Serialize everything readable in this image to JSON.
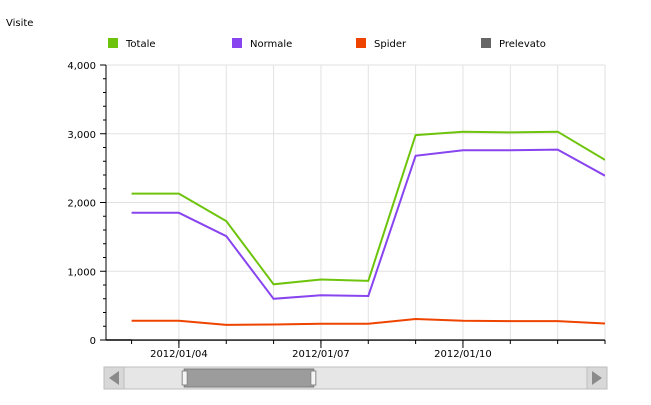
{
  "chart_data": {
    "type": "line",
    "title": "Visite",
    "xlabel": "",
    "ylabel": "",
    "x_tick_labels": [
      "2012/01/04",
      "2012/01/07",
      "2012/01/10"
    ],
    "x": [
      "2012/01/03",
      "2012/01/04",
      "2012/01/05",
      "2012/01/06",
      "2012/01/07",
      "2012/01/08",
      "2012/01/09",
      "2012/01/10",
      "2012/01/11",
      "2012/01/12",
      "2012/01/13"
    ],
    "xlim": [
      "2012/01/03",
      "2012/01/13"
    ],
    "ylim": [
      0,
      4000
    ],
    "y_ticks": [
      0,
      1000,
      2000,
      3000,
      4000
    ],
    "y_tick_labels": [
      "0",
      "1,000",
      "2,000",
      "3,000",
      "4,000"
    ],
    "grid": true,
    "legend_position": "top",
    "series": [
      {
        "name": "Totale",
        "color": "#6ec40c",
        "values": [
          2130,
          2130,
          1730,
          810,
          880,
          860,
          2980,
          3030,
          3020,
          3030,
          2620
        ]
      },
      {
        "name": "Normale",
        "color": "#8844ee",
        "values": [
          1850,
          1850,
          1510,
          600,
          650,
          640,
          2680,
          2760,
          2760,
          2770,
          2390
        ]
      },
      {
        "name": "Spider",
        "color": "#ee4400",
        "values": [
          280,
          280,
          220,
          225,
          235,
          235,
          305,
          280,
          275,
          275,
          240
        ]
      },
      {
        "name": "Prelevato",
        "color": "#666666",
        "values": [
          0,
          0,
          0,
          0,
          0,
          0,
          0,
          0,
          0,
          0,
          0
        ]
      }
    ]
  },
  "scrollbar": {
    "left_arrow": "scroll-left-arrow",
    "right_arrow": "scroll-right-arrow",
    "thumb_start": 0.13,
    "thumb_end": 0.41
  }
}
